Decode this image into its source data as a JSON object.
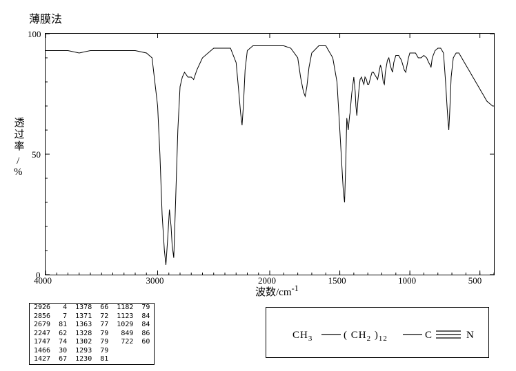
{
  "title": "薄膜法",
  "y_axis_label_main": "透过率",
  "y_axis_label_unit": "%",
  "x_axis_label": "波数/cm",
  "x_axis_sup": "-1",
  "chart": {
    "type": "line",
    "xlim": [
      4000,
      400
    ],
    "ylim": [
      0,
      100
    ],
    "xticks": [
      4000,
      3000,
      2000,
      1500,
      1000,
      500
    ],
    "yticks": [
      0,
      50,
      100
    ],
    "line_color": "#000000",
    "background_color": "#ffffff",
    "border_color": "#000000",
    "line_width": 1,
    "minor_tick_x": 100,
    "points": [
      [
        4000,
        93
      ],
      [
        3900,
        93
      ],
      [
        3800,
        93
      ],
      [
        3700,
        92
      ],
      [
        3600,
        93
      ],
      [
        3500,
        93
      ],
      [
        3400,
        93
      ],
      [
        3300,
        93
      ],
      [
        3200,
        93
      ],
      [
        3100,
        92
      ],
      [
        3050,
        90
      ],
      [
        3000,
        70
      ],
      [
        2980,
        50
      ],
      [
        2960,
        25
      ],
      [
        2940,
        10
      ],
      [
        2926,
        4
      ],
      [
        2910,
        15
      ],
      [
        2895,
        27
      ],
      [
        2880,
        20
      ],
      [
        2870,
        12
      ],
      [
        2856,
        7
      ],
      [
        2840,
        30
      ],
      [
        2820,
        60
      ],
      [
        2800,
        78
      ],
      [
        2780,
        82
      ],
      [
        2760,
        84
      ],
      [
        2730,
        82
      ],
      [
        2700,
        82
      ],
      [
        2679,
        81
      ],
      [
        2650,
        85
      ],
      [
        2600,
        90
      ],
      [
        2500,
        94
      ],
      [
        2450,
        94
      ],
      [
        2400,
        94
      ],
      [
        2350,
        94
      ],
      [
        2300,
        88
      ],
      [
        2280,
        78
      ],
      [
        2260,
        67
      ],
      [
        2247,
        62
      ],
      [
        2235,
        70
      ],
      [
        2220,
        85
      ],
      [
        2200,
        93
      ],
      [
        2150,
        95
      ],
      [
        2100,
        95
      ],
      [
        2050,
        95
      ],
      [
        2000,
        95
      ],
      [
        1950,
        95
      ],
      [
        1900,
        95
      ],
      [
        1850,
        94
      ],
      [
        1800,
        90
      ],
      [
        1780,
        82
      ],
      [
        1760,
        76
      ],
      [
        1747,
        74
      ],
      [
        1735,
        78
      ],
      [
        1720,
        86
      ],
      [
        1700,
        92
      ],
      [
        1650,
        95
      ],
      [
        1600,
        95
      ],
      [
        1550,
        90
      ],
      [
        1520,
        80
      ],
      [
        1500,
        60
      ],
      [
        1485,
        45
      ],
      [
        1475,
        35
      ],
      [
        1466,
        30
      ],
      [
        1458,
        45
      ],
      [
        1450,
        65
      ],
      [
        1440,
        60
      ],
      [
        1435,
        63
      ],
      [
        1430,
        66
      ],
      [
        1427,
        67
      ],
      [
        1415,
        75
      ],
      [
        1400,
        82
      ],
      [
        1390,
        76
      ],
      [
        1385,
        70
      ],
      [
        1378,
        66
      ],
      [
        1371,
        72
      ],
      [
        1363,
        77
      ],
      [
        1355,
        81
      ],
      [
        1345,
        82
      ],
      [
        1335,
        80
      ],
      [
        1328,
        79
      ],
      [
        1320,
        82
      ],
      [
        1310,
        81
      ],
      [
        1302,
        79
      ],
      [
        1295,
        79
      ],
      [
        1293,
        79
      ],
      [
        1280,
        82
      ],
      [
        1270,
        84
      ],
      [
        1260,
        84
      ],
      [
        1250,
        83
      ],
      [
        1240,
        82
      ],
      [
        1230,
        81
      ],
      [
        1220,
        84
      ],
      [
        1210,
        87
      ],
      [
        1200,
        85
      ],
      [
        1190,
        80
      ],
      [
        1182,
        79
      ],
      [
        1175,
        84
      ],
      [
        1160,
        89
      ],
      [
        1150,
        90
      ],
      [
        1140,
        87
      ],
      [
        1130,
        85
      ],
      [
        1123,
        84
      ],
      [
        1115,
        88
      ],
      [
        1100,
        91
      ],
      [
        1090,
        91
      ],
      [
        1080,
        91
      ],
      [
        1070,
        90
      ],
      [
        1060,
        89
      ],
      [
        1050,
        87
      ],
      [
        1040,
        85
      ],
      [
        1029,
        84
      ],
      [
        1020,
        87
      ],
      [
        1010,
        90
      ],
      [
        1000,
        92
      ],
      [
        980,
        92
      ],
      [
        960,
        92
      ],
      [
        940,
        90
      ],
      [
        920,
        90
      ],
      [
        900,
        91
      ],
      [
        880,
        90
      ],
      [
        865,
        88
      ],
      [
        855,
        87
      ],
      [
        849,
        86
      ],
      [
        840,
        90
      ],
      [
        820,
        93
      ],
      [
        800,
        94
      ],
      [
        780,
        94
      ],
      [
        760,
        92
      ],
      [
        745,
        80
      ],
      [
        735,
        70
      ],
      [
        728,
        64
      ],
      [
        722,
        60
      ],
      [
        715,
        68
      ],
      [
        705,
        82
      ],
      [
        690,
        90
      ],
      [
        670,
        92
      ],
      [
        650,
        92
      ],
      [
        630,
        90
      ],
      [
        610,
        88
      ],
      [
        590,
        86
      ],
      [
        570,
        84
      ],
      [
        550,
        82
      ],
      [
        530,
        80
      ],
      [
        510,
        78
      ],
      [
        490,
        76
      ],
      [
        470,
        74
      ],
      [
        450,
        72
      ],
      [
        430,
        71
      ],
      [
        410,
        70
      ],
      [
        400,
        70
      ]
    ]
  },
  "peak_table": {
    "rows": [
      [
        "2926",
        "4",
        "1378",
        "66",
        "1182",
        "79"
      ],
      [
        "2856",
        "7",
        "1371",
        "72",
        "1123",
        "84"
      ],
      [
        "2679",
        "81",
        "1363",
        "77",
        "1029",
        "84"
      ],
      [
        "2247",
        "62",
        "1328",
        "79",
        "849",
        "86"
      ],
      [
        "1747",
        "74",
        "1302",
        "79",
        "722",
        "60"
      ],
      [
        "1466",
        "30",
        "1293",
        "79",
        "",
        ""
      ],
      [
        "1427",
        "67",
        "1230",
        "81",
        "",
        ""
      ]
    ]
  },
  "structure": {
    "text_left": "CH",
    "sub_left": "3",
    "text_mid_open": "( CH",
    "sub_mid": "2",
    "text_mid_close": " )",
    "sub_rep": "12",
    "text_n": "N",
    "line_color": "#000000"
  }
}
